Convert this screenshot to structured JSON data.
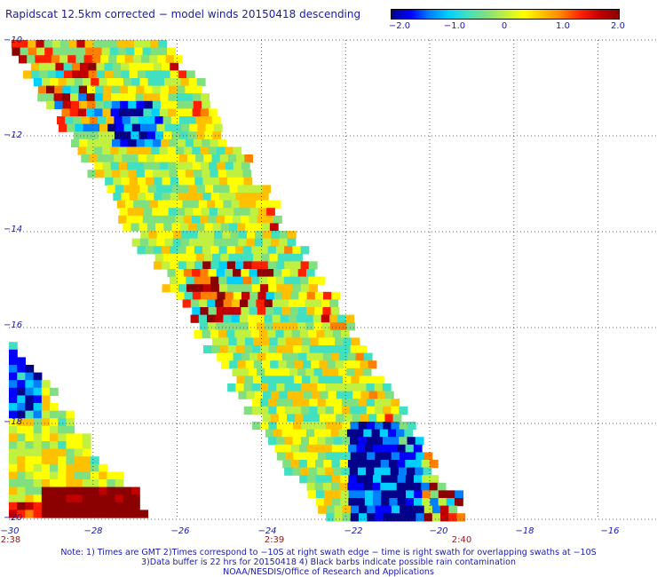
{
  "title": "Rapidscat 12.5km corrected − model winds 20150418 descending",
  "colorbar": {
    "colors": [
      "#00008b",
      "#0000ff",
      "#0080ff",
      "#00d0ff",
      "#40e0c0",
      "#80e080",
      "#c0f040",
      "#ffff00",
      "#ffc000",
      "#ff8000",
      "#ff2000",
      "#c00000",
      "#8b0000"
    ],
    "tick_labels": [
      "−2.0",
      "−1.0",
      "0",
      "1.0",
      "2.0"
    ],
    "tick_values": [
      -2.0,
      -1.0,
      0,
      1.0,
      2.0
    ],
    "range": [
      -2.0,
      2.0
    ]
  },
  "chart_data": {
    "type": "heatmap",
    "title": "Rapidscat 12.5km corrected − model winds 20150418 descending",
    "xlim": [
      -30,
      -14.6
    ],
    "ylim": [
      -20,
      -10
    ],
    "x_tick_labels": [
      "−28",
      "−26",
      "−24",
      "−22",
      "−20",
      "−18",
      "−16"
    ],
    "x_tick_values": [
      -28,
      -26,
      -24,
      -22,
      -20,
      -18,
      -16
    ],
    "x_corner_label": "−30",
    "y_tick_labels": [
      "−10",
      "−12",
      "−14",
      "−16",
      "−18",
      "−20"
    ],
    "y_tick_values": [
      -10,
      -12,
      -14,
      -16,
      -18,
      -20
    ],
    "time_labels": [
      {
        "lon": -30,
        "text": "2:38"
      },
      {
        "lon": -24,
        "text": "2:39"
      },
      {
        "lon": -20,
        "text": "2:40"
      }
    ],
    "grid": true,
    "colorbar_range": [
      -2.0,
      2.0
    ],
    "swaths": [
      {
        "name": "",
        "edge_top_left": [
          -30,
          -10
        ],
        "edge_bottom_left": [
          -22.5,
          -20
        ],
        "edge_top_right": [
          -26.2,
          -10
        ],
        "edge_bottom_right": [
          -19.1,
          -20
        ],
        "lat_range": [
          -10,
          -20
        ]
      },
      {
        "name": "",
        "edge_top": [
          -30,
          -16.3
        ],
        "edge_bottom_left": [
          -30,
          -20
        ],
        "edge_bottom_right": [
          -26.6,
          -20
        ],
        "lat_range": [
          -16.3,
          -20
        ]
      }
    ],
    "notes": [
      "Note: 1) Times are GMT 2)Times correspond to −10S at right swath edge − time is right swath for overlapping swaths at −10S",
      "3)Data buffer is 22 hrs for 20150418 4) Black barbs indicate possible rain contamination",
      "NOAA/NESDIS/Office of Research and Applications"
    ]
  }
}
